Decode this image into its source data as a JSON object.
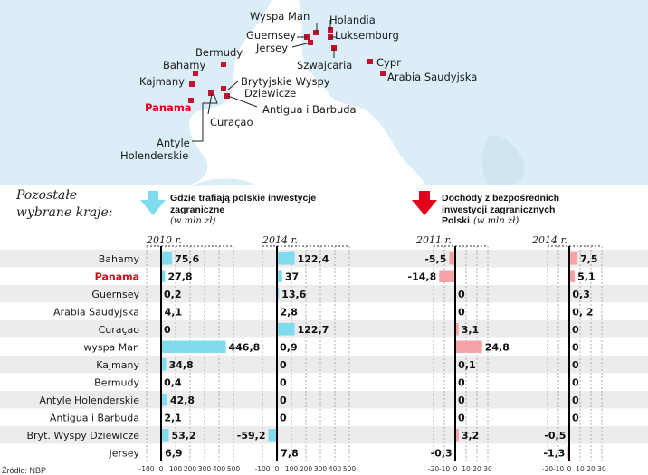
{
  "map": {
    "labels": [
      "Wyspa Man",
      "Holandia",
      "Guernsey",
      "Luksemburg",
      "Jersey",
      "Bermudy",
      "Szwajcaria",
      "Cypr",
      "Bahamy",
      "Arabia Saudyjska",
      "Kajmany",
      "Brytyjskie Wyspy",
      "Dziewicze",
      "Panama",
      "Antigua i Barbuda",
      "Curaçao",
      "Antyle",
      "Holenderskie"
    ]
  },
  "side_title_line1": "Pozostałe",
  "side_title_line2": "wybrane kraje:",
  "legend_invest_line1": "Gdzie trafiają polskie inwestycje",
  "legend_invest_line2": "zagraniczne",
  "legend_invest_unit": "(w mln zł)",
  "legend_income_line1": "Dochody z bezpośrednich",
  "legend_income_line2": "inwestycji zagranicznych",
  "legend_income_line3": "Polski",
  "legend_income_unit": "(w mln zł)",
  "footer_source": "Źródło: NBP",
  "colors": {
    "invest": "#7fdcef",
    "income": "#f5a3a6",
    "highlight": "#e2001a",
    "marker": "#c8102e",
    "map": "#dbeef7",
    "row_alt": "#ececec"
  },
  "chart_data": {
    "type": "bar",
    "orientation": "horizontal",
    "categories": [
      "Bahamy",
      "Panama",
      "Guernsey",
      "Arabia Saudyjska",
      "Curaçao",
      "wyspa Man",
      "Kajmany",
      "Bermudy",
      "Antyle Holenderskie",
      "Antigua i Barbuda",
      "Bryt. Wyspy Dziewicze",
      "Jersey"
    ],
    "highlight_category": "Panama",
    "panels": [
      {
        "group": "invest",
        "year": "2010 r.",
        "xlim": [
          -100,
          500
        ],
        "ticks": [
          "-100",
          "0",
          "100",
          "200",
          "300",
          "400",
          "500"
        ],
        "tick_values": [
          -100,
          0,
          100,
          200,
          300,
          400,
          500
        ],
        "values": [
          75.6,
          27.8,
          0.2,
          4.1,
          0,
          446.8,
          34.8,
          0.4,
          42.8,
          2.1,
          53.2,
          6.9
        ],
        "labels": [
          "75,6",
          "27,8",
          "0,2",
          "4,1",
          "0",
          "446,8",
          "34,8",
          "0,4",
          "42,8",
          "2,1",
          "53,2",
          "6,9"
        ]
      },
      {
        "group": "invest",
        "year": "2014 r.",
        "xlim": [
          -100,
          500
        ],
        "ticks": [
          "-100",
          "0",
          "100",
          "200",
          "300",
          "400",
          "500"
        ],
        "tick_values": [
          -100,
          0,
          100,
          200,
          300,
          400,
          500
        ],
        "values": [
          122.4,
          37,
          13.6,
          2.8,
          122.7,
          0.9,
          0,
          0,
          0,
          0,
          -59.2,
          7.8
        ],
        "labels": [
          "122,4",
          "37",
          "13,6",
          "2,8",
          "122,7",
          "0,9",
          "0",
          "0",
          "0",
          "0",
          "-59,2",
          "7,8"
        ]
      },
      {
        "group": "income",
        "year": "2011 r.",
        "xlim": [
          -20,
          30
        ],
        "ticks": [
          "-20",
          "-10",
          "0",
          "10",
          "20",
          "30"
        ],
        "tick_values": [
          -20,
          -10,
          0,
          10,
          20,
          30
        ],
        "values": [
          -5.5,
          -14.8,
          0,
          0,
          3.1,
          24.8,
          0.1,
          0,
          0,
          0,
          3.2,
          -0.3
        ],
        "labels": [
          "-5,5",
          "-14,8",
          "0",
          "0",
          "3,1",
          "24,8",
          "0,1",
          "0",
          "0",
          "0",
          "3,2",
          "-0,3"
        ]
      },
      {
        "group": "income",
        "year": "2014 r.",
        "xlim": [
          -20,
          30
        ],
        "ticks": [
          "-20",
          "-10",
          "0",
          "10",
          "20",
          "30"
        ],
        "tick_values": [
          -20,
          -10,
          0,
          10,
          20,
          30
        ],
        "values": [
          7.5,
          5.1,
          0.3,
          0.2,
          0,
          0,
          0,
          0,
          0,
          0,
          -0.5,
          -1.3
        ],
        "labels": [
          "7,5",
          "5,1",
          "0,3",
          "0, 2",
          "0",
          "0",
          "0",
          "0",
          "0",
          "0",
          "-0,5",
          "-1,3"
        ]
      }
    ]
  }
}
